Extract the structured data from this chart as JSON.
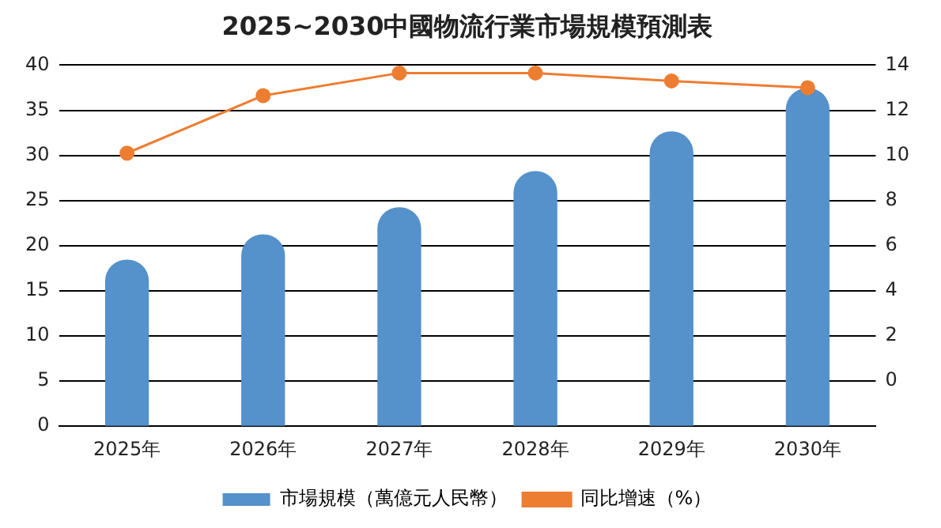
{
  "chart_data": {
    "type": "bar",
    "title": "2025~2030中國物流行業市場規模預測表",
    "categories": [
      "2025年",
      "2026年",
      "2027年",
      "2028年",
      "2029年",
      "2030年"
    ],
    "series": [
      {
        "name": "市場規模（萬億元人民幣）",
        "color": "#5591cb",
        "values": [
          18.4,
          21.2,
          24.2,
          28.2,
          32.6,
          37.4
        ]
      },
      {
        "name": "同比增速（%）",
        "type": "line",
        "axis": "y2",
        "color": "#ed7d31",
        "values": [
          10.1,
          12.65,
          13.65,
          13.65,
          13.3,
          13.0
        ]
      }
    ],
    "ylim": [
      0,
      40
    ],
    "yticks": [
      0,
      5,
      10,
      15,
      20,
      25,
      30,
      35,
      40
    ],
    "y2lim": [
      -2,
      14
    ],
    "y2ticks": [
      {
        "value": -2,
        "label": null
      },
      0,
      2,
      4,
      6,
      8,
      10,
      12,
      14
    ],
    "grid": "y",
    "legend": "bottom",
    "marker": "circle",
    "line_style": "solid"
  }
}
